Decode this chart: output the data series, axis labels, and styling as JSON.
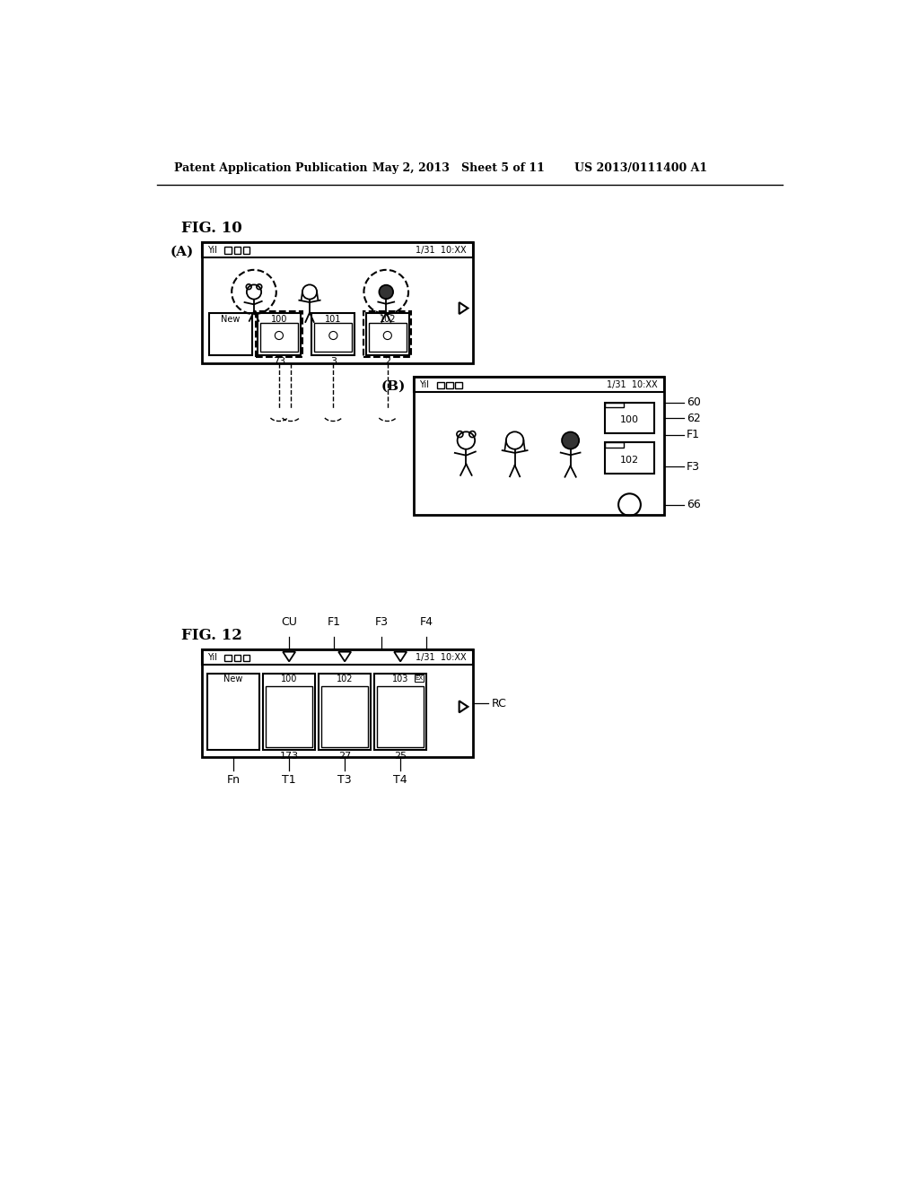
{
  "bg_color": "#ffffff",
  "header_left": "Patent Application Publication",
  "header_mid": "May 2, 2013   Sheet 5 of 11",
  "header_right": "US 2013/0111400 A1",
  "fig10_label": "FIG. 10",
  "figA_label": "(A)",
  "figB_label": "(B)",
  "fig12_label": "FIG. 12",
  "figB_labels_right": [
    "60",
    "62",
    "F1",
    "F3",
    "66"
  ],
  "fig12_labels_top": [
    "CU",
    "F1",
    "F3",
    "F4"
  ],
  "fig12_labels_bottom": [
    "Fn",
    "T1",
    "T3",
    "T4"
  ],
  "fig12_label_right": "RC"
}
